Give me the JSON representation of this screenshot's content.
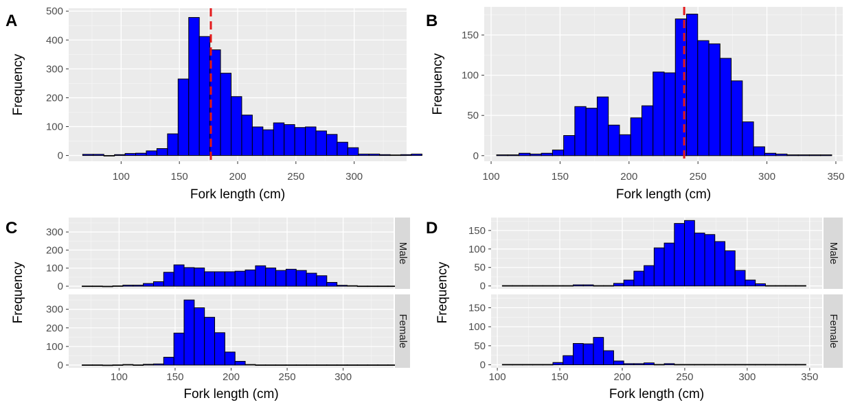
{
  "colors": {
    "bar_fill": "#0000ff",
    "bar_stroke": "#000000",
    "panel_bg": "#ebebeb",
    "grid_major": "#ffffff",
    "strip_bg": "#d9d9d9",
    "ref_line": "#e41a1c"
  },
  "chart_data": [
    {
      "type": "bar",
      "panel": "A",
      "xlabel": "Fork length (cm)",
      "ylabel": "Frequency",
      "xlim": [
        55,
        345
      ],
      "ylim": [
        -20,
        510
      ],
      "xticks": [
        100,
        150,
        200,
        250,
        300
      ],
      "yticks": [
        0,
        100,
        200,
        300,
        400,
        500
      ],
      "bin_width": 9.1,
      "bins_start": 67,
      "values": [
        4,
        4,
        0,
        3,
        7,
        8,
        16,
        24,
        75,
        265,
        478,
        412,
        366,
        285,
        204,
        140,
        99,
        89,
        113,
        107,
        97,
        99,
        85,
        73,
        46,
        27,
        5,
        5,
        3,
        2,
        3,
        5
      ],
      "reference_line": 177
    },
    {
      "type": "bar",
      "panel": "B",
      "xlabel": "Fork length (cm)",
      "ylabel": "Frequency",
      "xlim": [
        95,
        355
      ],
      "ylim": [
        -7,
        185
      ],
      "xticks": [
        100,
        150,
        200,
        250,
        300,
        350
      ],
      "yticks": [
        0,
        50,
        100,
        150
      ],
      "bin_width": 8.1,
      "bins_start": 104,
      "values": [
        1,
        1,
        3,
        2,
        3,
        7,
        25,
        61,
        59,
        73,
        38,
        26,
        47,
        62,
        104,
        103,
        170,
        176,
        143,
        139,
        121,
        93,
        42,
        11,
        3,
        2,
        1,
        1,
        1,
        1
      ],
      "reference_line": 240
    },
    {
      "type": "bar",
      "panel": "C",
      "xlabel": "Fork length (cm)",
      "ylabel": "Frequency",
      "xlim": [
        55,
        345
      ],
      "xticks": [
        100,
        150,
        200,
        250,
        300
      ],
      "bin_width": 9.1,
      "bins_start": 67,
      "facets": [
        {
          "strip": "Male",
          "ylim": [
            -15,
            380
          ],
          "yticks": [
            0,
            100,
            200,
            300
          ],
          "values": [
            1,
            1,
            0,
            2,
            6,
            6,
            15,
            25,
            77,
            118,
            103,
            101,
            80,
            80,
            80,
            83,
            90,
            113,
            101,
            87,
            94,
            87,
            72,
            58,
            21,
            5,
            3,
            1,
            1,
            1,
            1,
            1
          ]
        },
        {
          "strip": "Female",
          "ylim": [
            -15,
            380
          ],
          "yticks": [
            0,
            100,
            200,
            300
          ],
          "values": [
            1,
            1,
            0,
            1,
            3,
            1,
            4,
            6,
            42,
            172,
            350,
            308,
            257,
            174,
            70,
            20,
            3,
            1,
            1,
            1,
            1,
            1,
            1,
            1,
            1,
            1,
            1,
            1,
            1,
            1,
            1,
            1
          ]
        }
      ]
    },
    {
      "type": "bar",
      "panel": "D",
      "xlabel": "Fork length (cm)",
      "ylabel": "Frequency",
      "xlim": [
        95,
        360
      ],
      "xticks": [
        100,
        150,
        200,
        250,
        300,
        350
      ],
      "bin_width": 8.1,
      "bins_start": 104,
      "facets": [
        {
          "strip": "Male",
          "ylim": [
            -8,
            185
          ],
          "yticks": [
            0,
            50,
            100,
            150
          ],
          "values": [
            1,
            1,
            1,
            1,
            1,
            1,
            1,
            3,
            3,
            1,
            1,
            7,
            16,
            40,
            55,
            103,
            116,
            169,
            177,
            143,
            139,
            120,
            95,
            42,
            16,
            6,
            1,
            1,
            1,
            1
          ]
        },
        {
          "strip": "Female",
          "ylim": [
            -8,
            185
          ],
          "yticks": [
            0,
            50,
            100,
            150
          ],
          "values": [
            1,
            1,
            1,
            1,
            1,
            6,
            24,
            56,
            55,
            72,
            37,
            10,
            3,
            3,
            5,
            1,
            3,
            1,
            1,
            1,
            1,
            1,
            1,
            1,
            1,
            1,
            1,
            1,
            1,
            1
          ]
        }
      ]
    }
  ]
}
